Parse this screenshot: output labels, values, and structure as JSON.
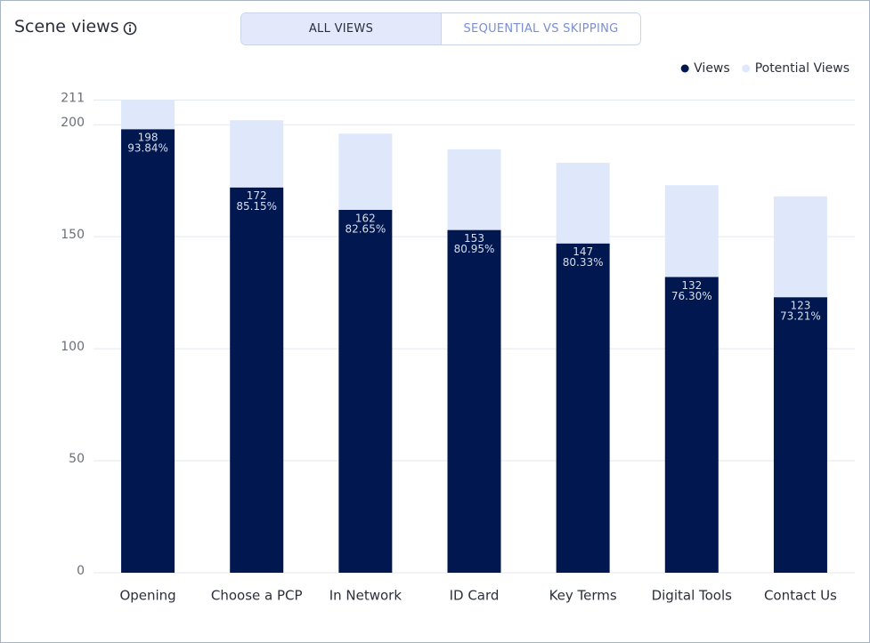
{
  "header": {
    "title": "Scene views"
  },
  "tabs": [
    {
      "label": "ALL VIEWS",
      "selected": true
    },
    {
      "label": "SEQUENTIAL VS SKIPPING",
      "selected": false
    }
  ],
  "chart_data": {
    "type": "bar",
    "stacked": true,
    "categories": [
      "Opening",
      "Choose a PCP",
      "In Network",
      "ID Card",
      "Key Terms",
      "Digital Tools",
      "Contact Us"
    ],
    "series": [
      {
        "name": "Views",
        "color": "#00174f",
        "values": [
          198,
          172,
          162,
          153,
          147,
          132,
          123
        ],
        "percent_labels": [
          "93.84%",
          "85.15%",
          "82.65%",
          "80.95%",
          "80.33%",
          "76.30%",
          "73.21%"
        ]
      },
      {
        "name": "Potential Views",
        "color": "#dfe8fb",
        "values": [
          13,
          30,
          34,
          36,
          36,
          41,
          45
        ]
      }
    ],
    "ylim": [
      0,
      211
    ],
    "yticks": [
      0,
      50,
      100,
      150,
      200,
      211
    ],
    "grid": true,
    "legend": "top-right"
  }
}
